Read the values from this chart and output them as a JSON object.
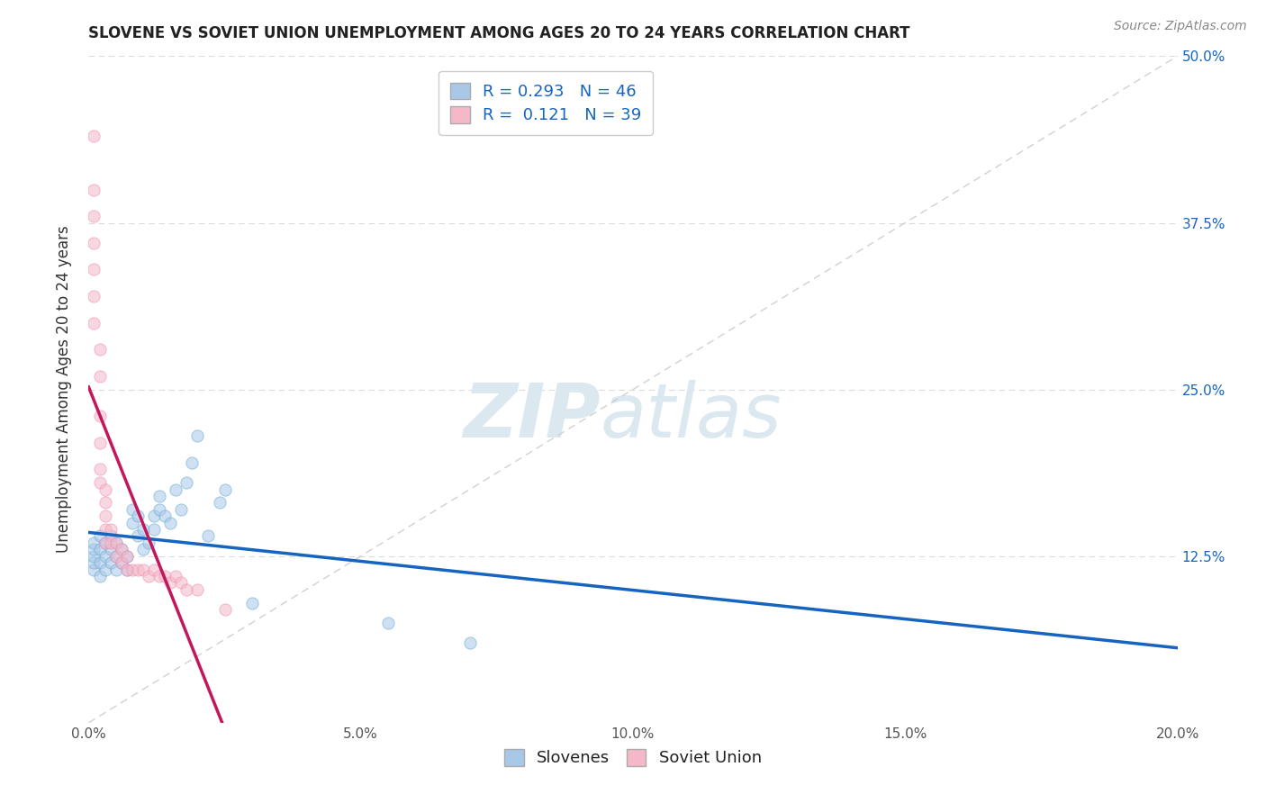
{
  "title": "SLOVENE VS SOVIET UNION UNEMPLOYMENT AMONG AGES 20 TO 24 YEARS CORRELATION CHART",
  "source_text": "Source: ZipAtlas.com",
  "ylabel": "Unemployment Among Ages 20 to 24 years",
  "xlim": [
    0.0,
    0.2
  ],
  "ylim": [
    0.0,
    0.5
  ],
  "xticks": [
    0.0,
    0.05,
    0.1,
    0.15,
    0.2
  ],
  "xtick_labels": [
    "0.0%",
    "5.0%",
    "10.0%",
    "15.0%",
    "20.0%"
  ],
  "yticks": [
    0.0,
    0.125,
    0.25,
    0.375,
    0.5
  ],
  "ytick_labels": [
    "",
    "12.5%",
    "25.0%",
    "37.5%",
    "50.0%"
  ],
  "blue_color": "#a8c8e8",
  "pink_color": "#f4b8c8",
  "blue_edge_color": "#6baed6",
  "pink_edge_color": "#f48fb1",
  "blue_line_color": "#1565c0",
  "pink_line_color": "#c2185b",
  "diag_color": "#cccccc",
  "grid_color": "#cccccc",
  "watermark_color": "#dce8f0",
  "legend_R1": "R = 0.293",
  "legend_N1": "N = 46",
  "legend_R2": "R =  0.121",
  "legend_N2": "N = 39",
  "slovene_x": [
    0.001,
    0.001,
    0.001,
    0.001,
    0.001,
    0.002,
    0.002,
    0.002,
    0.002,
    0.003,
    0.003,
    0.003,
    0.004,
    0.004,
    0.004,
    0.005,
    0.005,
    0.005,
    0.006,
    0.006,
    0.007,
    0.007,
    0.008,
    0.008,
    0.009,
    0.009,
    0.01,
    0.01,
    0.011,
    0.012,
    0.012,
    0.013,
    0.013,
    0.014,
    0.015,
    0.016,
    0.017,
    0.018,
    0.019,
    0.02,
    0.022,
    0.024,
    0.025,
    0.03,
    0.055,
    0.07
  ],
  "slovene_y": [
    0.115,
    0.12,
    0.125,
    0.13,
    0.135,
    0.11,
    0.12,
    0.13,
    0.14,
    0.115,
    0.125,
    0.135,
    0.12,
    0.13,
    0.14,
    0.115,
    0.125,
    0.135,
    0.12,
    0.13,
    0.115,
    0.125,
    0.15,
    0.16,
    0.14,
    0.155,
    0.13,
    0.145,
    0.135,
    0.145,
    0.155,
    0.16,
    0.17,
    0.155,
    0.15,
    0.175,
    0.16,
    0.18,
    0.195,
    0.215,
    0.14,
    0.165,
    0.175,
    0.09,
    0.075,
    0.06
  ],
  "soviet_x": [
    0.001,
    0.001,
    0.001,
    0.001,
    0.001,
    0.001,
    0.001,
    0.002,
    0.002,
    0.002,
    0.002,
    0.002,
    0.002,
    0.003,
    0.003,
    0.003,
    0.003,
    0.003,
    0.004,
    0.004,
    0.005,
    0.005,
    0.006,
    0.006,
    0.007,
    0.007,
    0.008,
    0.009,
    0.01,
    0.011,
    0.012,
    0.013,
    0.014,
    0.015,
    0.016,
    0.017,
    0.018,
    0.02,
    0.025
  ],
  "soviet_y": [
    0.44,
    0.4,
    0.38,
    0.36,
    0.34,
    0.32,
    0.3,
    0.28,
    0.26,
    0.23,
    0.21,
    0.19,
    0.18,
    0.175,
    0.165,
    0.155,
    0.145,
    0.135,
    0.145,
    0.135,
    0.135,
    0.125,
    0.13,
    0.12,
    0.125,
    0.115,
    0.115,
    0.115,
    0.115,
    0.11,
    0.115,
    0.11,
    0.11,
    0.105,
    0.11,
    0.105,
    0.1,
    0.1,
    0.085
  ],
  "title_fontsize": 12,
  "axis_label_fontsize": 12,
  "tick_fontsize": 11,
  "legend_fontsize": 13,
  "source_fontsize": 10,
  "marker_size": 90,
  "marker_alpha": 0.55,
  "title_color": "#222222",
  "axis_label_color": "#333333",
  "tick_color": "#555555",
  "right_tick_color": "#1565c0"
}
